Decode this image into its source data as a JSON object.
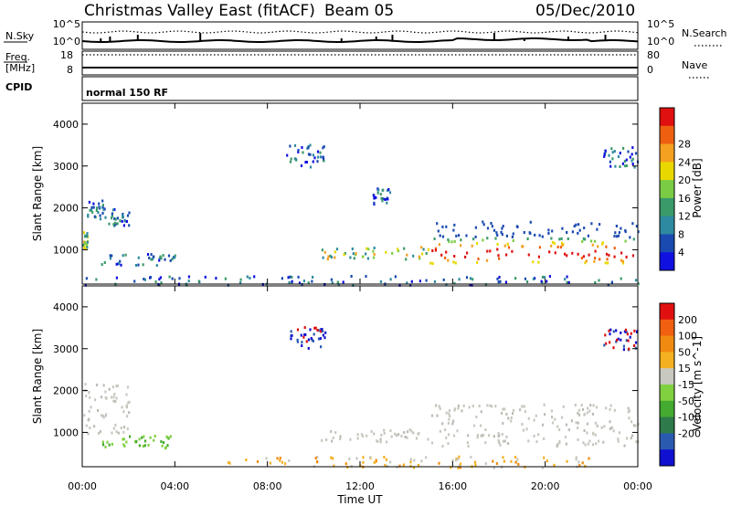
{
  "header": {
    "title": "Christmas Valley East (fitACF)",
    "beam": "Beam 05",
    "date": "05/Dec/2010"
  },
  "panels": {
    "nsky": {
      "label": "N.Sky",
      "top": "10^5",
      "bottom": "10^0"
    },
    "nsearch": {
      "label": "N.Search",
      "top": "10^5",
      "bottom": "10^0"
    },
    "freq": {
      "label_1": "Freq.",
      "label_2": "[MHz]",
      "top": "18",
      "bottom": "8"
    },
    "nave": {
      "label": "Nave",
      "top": "80",
      "bottom": "0"
    },
    "cpid": {
      "label": "CPID",
      "value": "normal 150 RF"
    }
  },
  "x_axis": {
    "label": "Time UT",
    "ticks": [
      "00:00",
      "04:00",
      "08:00",
      "12:00",
      "16:00",
      "20:00",
      "00:00"
    ]
  },
  "chart_data": [
    {
      "type": "heatmap",
      "name": "power",
      "ylabel": "Slant Range [km]",
      "yticks": [
        1000,
        2000,
        3000,
        4000
      ],
      "ylim": [
        180,
        4500
      ],
      "xlim_hours": [
        0,
        24
      ],
      "colorbar": {
        "label": "Power [dB]",
        "ticks": [
          "4",
          "8",
          "12",
          "16",
          "20",
          "24",
          "28"
        ],
        "colors": [
          "#1010e0",
          "#1a4ab0",
          "#2e8aa0",
          "#3a9a6a",
          "#7acc44",
          "#e8d800",
          "#f4a020",
          "#ee6010",
          "#e01010"
        ]
      },
      "regions": [
        {
          "t_start": 0.0,
          "t_end": 0.2,
          "r_min": 1000,
          "r_max": 1500,
          "level": "mid"
        },
        {
          "t_start": 0.2,
          "t_end": 1.0,
          "r_min": 1700,
          "r_max": 2200,
          "level": "low"
        },
        {
          "t_start": 1.0,
          "t_end": 2.0,
          "r_min": 1600,
          "r_max": 2000,
          "level": "low"
        },
        {
          "t_start": 0.8,
          "t_end": 4.0,
          "r_min": 650,
          "r_max": 950,
          "level": "low"
        },
        {
          "t_start": 10.3,
          "t_end": 15.0,
          "r_min": 800,
          "r_max": 1100,
          "level": "mid"
        },
        {
          "t_start": 15.0,
          "t_end": 24.0,
          "r_min": 700,
          "r_max": 1700,
          "level": "high"
        },
        {
          "t_start": 8.8,
          "t_end": 10.5,
          "r_min": 3000,
          "r_max": 3550,
          "level": "low"
        },
        {
          "t_start": 12.5,
          "t_end": 13.3,
          "r_min": 2100,
          "r_max": 2500,
          "level": "low"
        },
        {
          "t_start": 22.5,
          "t_end": 24.0,
          "r_min": 3000,
          "r_max": 3500,
          "level": "low"
        },
        {
          "t_start": 0.0,
          "t_end": 24.0,
          "r_min": 180,
          "r_max": 400,
          "level": "low"
        }
      ]
    },
    {
      "type": "heatmap",
      "name": "velocity",
      "ylabel": "Slant Range [km]",
      "yticks": [
        1000,
        2000,
        3000,
        4000
      ],
      "ylim": [
        180,
        4500
      ],
      "xlim_hours": [
        0,
        24
      ],
      "colorbar": {
        "label": "Velocity [m s^-1]",
        "ticks": [
          "200",
          "100",
          "50",
          "15",
          "-15",
          "-50",
          "-100",
          "-200"
        ],
        "colors": [
          "#1010d0",
          "#2a5ab0",
          "#2e7a4a",
          "#44aa30",
          "#80d040",
          "#c8c8c0",
          "#f4b020",
          "#f08a10",
          "#f06010",
          "#e01010"
        ]
      },
      "regions": [
        {
          "t_start": 0.0,
          "t_end": 2.0,
          "r_min": 1000,
          "r_max": 2200,
          "level": "grey"
        },
        {
          "t_start": 0.8,
          "t_end": 4.0,
          "r_min": 650,
          "r_max": 950,
          "level": "green"
        },
        {
          "t_start": 10.3,
          "t_end": 15.0,
          "r_min": 800,
          "r_max": 1100,
          "level": "grey"
        },
        {
          "t_start": 15.0,
          "t_end": 24.0,
          "r_min": 700,
          "r_max": 1700,
          "level": "grey"
        },
        {
          "t_start": 8.8,
          "t_end": 10.5,
          "r_min": 3000,
          "r_max": 3550,
          "level": "blue"
        },
        {
          "t_start": 22.5,
          "t_end": 24.0,
          "r_min": 3000,
          "r_max": 3500,
          "level": "blue"
        },
        {
          "t_start": 6.0,
          "t_end": 22.0,
          "r_min": 180,
          "r_max": 450,
          "level": "orange"
        }
      ]
    }
  ]
}
